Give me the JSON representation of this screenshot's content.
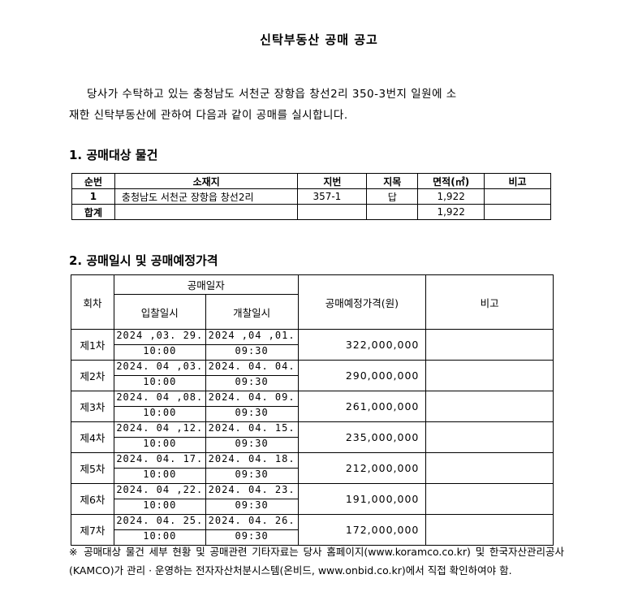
{
  "title": "신탁부동산 공매 공고",
  "intro": [
    "당사가 수탁하고 있는 충청남도 서천군 장항읍 창선2리 350-3번지 일원에 소",
    "재한 신탁부동산에 관하여 다음과 같이 공매를 실시합니다."
  ],
  "section1": {
    "heading": "1. 공매대상 물건",
    "headers": [
      "순번",
      "소재지",
      "지번",
      "지목",
      "면적(㎡)",
      "비고"
    ],
    "rows": [
      {
        "no": "1",
        "location": "충청남도 서천군 장항읍 창선2리",
        "lot": "357-1",
        "category": "답",
        "area": "1,922",
        "note": ""
      }
    ],
    "total": {
      "label": "합계",
      "area": "1,922"
    }
  },
  "section2": {
    "heading": "2. 공매일시 및 공매예정가격",
    "headers": {
      "round": "회차",
      "date_group": "공매일자",
      "bid": "입찰일시",
      "open": "개찰일시",
      "price": "공매예정가격(원)",
      "note": "비고"
    },
    "rows": [
      {
        "round": "제1차",
        "bid_date": "2024 ,03. 29.",
        "bid_time": "10:00",
        "open_date": "2024 ,04 ,01.",
        "open_time": "09:30",
        "price": "322,000,000"
      },
      {
        "round": "제2차",
        "bid_date": "2024. 04 ,03.",
        "bid_time": "10:00",
        "open_date": "2024. 04. 04.",
        "open_time": "09:30",
        "price": "290,000,000"
      },
      {
        "round": "제3차",
        "bid_date": "2024. 04 ,08.",
        "bid_time": "10:00",
        "open_date": "2024. 04. 09.",
        "open_time": "09:30",
        "price": "261,000,000"
      },
      {
        "round": "제4차",
        "bid_date": "2024. 04 ,12.",
        "bid_time": "10:00",
        "open_date": "2024. 04. 15.",
        "open_time": "09:30",
        "price": "235,000,000"
      },
      {
        "round": "제5차",
        "bid_date": "2024. 04. 17.",
        "bid_time": "10:00",
        "open_date": "2024. 04. 18.",
        "open_time": "09:30",
        "price": "212,000,000"
      },
      {
        "round": "제6차",
        "bid_date": "2024. 04 ,22.",
        "bid_time": "10:00",
        "open_date": "2024. 04. 23.",
        "open_time": "09:30",
        "price": "191,000,000"
      },
      {
        "round": "제7차",
        "bid_date": "2024. 04. 25.",
        "bid_time": "10:00",
        "open_date": "2024. 04. 26.",
        "open_time": "09:30",
        "price": "172,000,000"
      }
    ]
  },
  "footnote": "※ 공매대상 물건 세부 현황 및 공매관련 기타자료는 당사 홈페이지(www.koramco.co.kr) 및 한국자산관리공사(KAMCO)가 관리 · 운영하는 전자자산처분시스템(온비드, www.onbid.co.kr)에서 직접 확인하여야 함."
}
